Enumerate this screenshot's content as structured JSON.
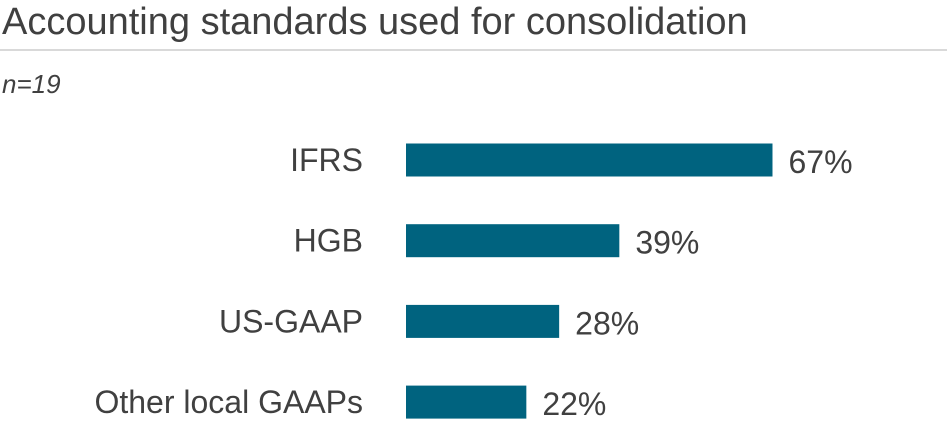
{
  "chart_data": {
    "type": "bar",
    "orientation": "horizontal",
    "title": "Accounting standards used for consolidation",
    "subtitle": "n=19",
    "categories": [
      "IFRS",
      "HGB",
      "US-GAAP",
      "Other local GAAPs"
    ],
    "values": [
      67,
      39,
      28,
      22
    ],
    "value_labels": [
      "67%",
      "39%",
      "28%",
      "22%"
    ],
    "unit": "%",
    "xlim": [
      0,
      100
    ],
    "grid": false,
    "legend": "none",
    "bar_color": "#00637f",
    "text_color": "#404040"
  }
}
